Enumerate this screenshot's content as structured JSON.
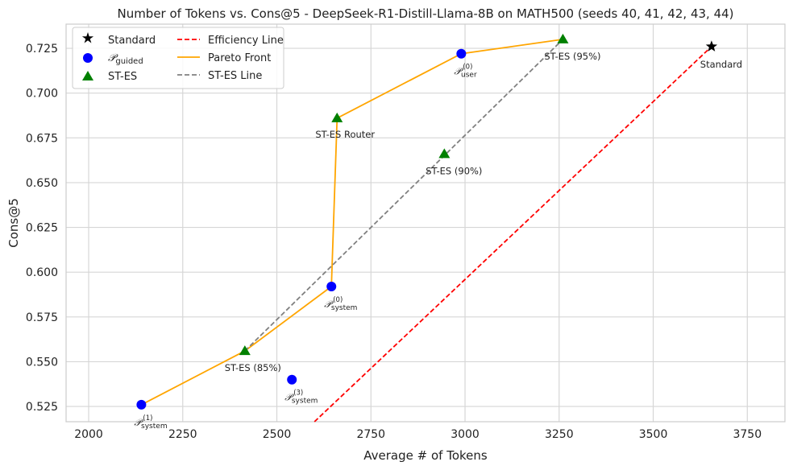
{
  "chart_data": {
    "type": "scatter",
    "title": "Number of Tokens vs. Cons@5 - DeepSeek-R1-Distill-Llama-8B on MATH500 (seeds 40, 41, 42, 43, 44)",
    "xlabel": "Average # of Tokens",
    "ylabel": "Cons@5",
    "xlim": [
      1940,
      3850
    ],
    "ylim": [
      0.5165,
      0.7385
    ],
    "xticks": [
      2000,
      2250,
      2500,
      2750,
      3000,
      3250,
      3500,
      3750
    ],
    "yticks": [
      0.525,
      0.55,
      0.575,
      0.6,
      0.625,
      0.65,
      0.675,
      0.7,
      0.725
    ],
    "xtick_labels": [
      "2000",
      "2250",
      "2500",
      "2750",
      "3000",
      "3250",
      "3500",
      "3750"
    ],
    "ytick_labels": [
      "0.525",
      "0.550",
      "0.575",
      "0.600",
      "0.625",
      "0.650",
      "0.675",
      "0.700",
      "0.725"
    ],
    "grid": true,
    "legend_position": "top-left",
    "colors": {
      "standard": "#000000",
      "guided": "#0000ff",
      "st_es": "#008000",
      "efficiency": "#ff0000",
      "pareto": "#ffa500",
      "st_es_line": "#808080"
    },
    "series": [
      {
        "name": "Standard",
        "marker": "star",
        "points": [
          {
            "x": 3655,
            "y": 0.726,
            "label": "Standard"
          }
        ]
      },
      {
        "name": "P_guided",
        "marker": "circle",
        "points": [
          {
            "x": 2140,
            "y": 0.526,
            "label_sup": "(1)",
            "label_sub": "system"
          },
          {
            "x": 2540,
            "y": 0.54,
            "label_sup": "(3)",
            "label_sub": "system"
          },
          {
            "x": 2645,
            "y": 0.592,
            "label_sup": "(0)",
            "label_sub": "system"
          },
          {
            "x": 2990,
            "y": 0.722,
            "label_sup": "(0)",
            "label_sub": "user"
          }
        ]
      },
      {
        "name": "ST-ES",
        "marker": "triangle",
        "points": [
          {
            "x": 2415,
            "y": 0.556,
            "label": "ST-ES (85%)"
          },
          {
            "x": 2660,
            "y": 0.686,
            "label": "ST-ES Router"
          },
          {
            "x": 2945,
            "y": 0.666,
            "label": "ST-ES (90%)"
          },
          {
            "x": 3260,
            "y": 0.73,
            "label": "ST-ES (95%)"
          }
        ]
      }
    ],
    "lines": [
      {
        "name": "Efficiency Line",
        "style": "dashed",
        "x": [
          2600,
          3655
        ],
        "y": [
          0.5165,
          0.726
        ]
      },
      {
        "name": "Pareto Front",
        "style": "solid",
        "x": [
          2140,
          2415,
          2645,
          2660,
          2990,
          3260
        ],
        "y": [
          0.526,
          0.556,
          0.592,
          0.686,
          0.722,
          0.73
        ]
      },
      {
        "name": "ST-ES Line",
        "style": "dashed",
        "x": [
          2415,
          3260
        ],
        "y": [
          0.556,
          0.73
        ]
      }
    ],
    "legend": {
      "standard": "Standard",
      "guided": "guided",
      "st_es": "ST-ES",
      "efficiency": "Efficiency Line",
      "pareto": "Pareto Front",
      "st_es_line": "ST-ES Line"
    }
  }
}
